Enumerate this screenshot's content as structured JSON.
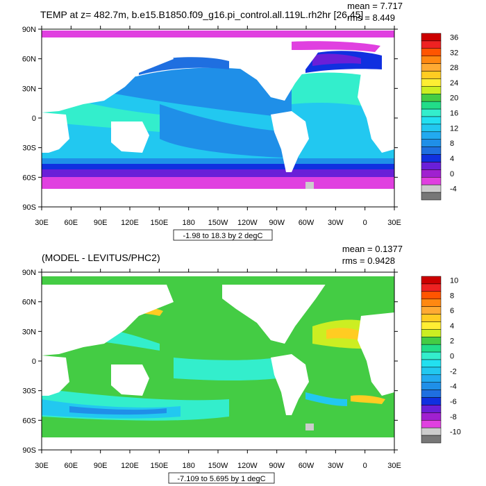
{
  "chart_data": [
    {
      "type": "heatmap",
      "title": "TEMP at z= 482.7m, b.e15.B1850.f09_g16.pi_control.all.119L.rh2hr [26,45]",
      "stat_mean": "mean = 7.717",
      "stat_rms": "rms = 8.449",
      "range_note": "-1.98 to 18.3 by 2 degC",
      "y_ticks": [
        "90N",
        "60N",
        "30N",
        "0",
        "30S",
        "60S",
        "90S"
      ],
      "x_ticks": [
        "30E",
        "60E",
        "90E",
        "120E",
        "150E",
        "180",
        "150W",
        "120W",
        "90W",
        "60W",
        "30W",
        "0",
        "30E"
      ],
      "colorbar_labels": [
        "36",
        "32",
        "28",
        "24",
        "20",
        "16",
        "12",
        "8",
        "4",
        "0",
        "-4"
      ],
      "colorbar_colors": [
        "#cc0000",
        "#ee2222",
        "#ff5500",
        "#ff8811",
        "#ffaa33",
        "#ffcc22",
        "#ffee33",
        "#ccee22",
        "#44cc44",
        "#22dd88",
        "#33eecc",
        "#22e0f0",
        "#22c8f0",
        "#22aaf0",
        "#1f8fe8",
        "#1f6fe0",
        "#1030e0",
        "#6a1fd8",
        "#a020d0",
        "#e040e0",
        "#cccccc",
        "#777777"
      ]
    },
    {
      "type": "heatmap",
      "title": "(MODEL - LEVITUS/PHC2)",
      "stat_mean": "mean = 0.1377",
      "stat_rms": "rms = 0.9428",
      "range_note": "-7.109 to 5.695 by 1 degC",
      "y_ticks": [
        "90N",
        "60N",
        "30N",
        "0",
        "30S",
        "60S",
        "90S"
      ],
      "x_ticks": [
        "30E",
        "60E",
        "90E",
        "120E",
        "150E",
        "180",
        "150W",
        "120W",
        "90W",
        "60W",
        "30W",
        "0",
        "30E"
      ],
      "colorbar_labels": [
        "10",
        "8",
        "6",
        "4",
        "2",
        "0",
        "-2",
        "-4",
        "-6",
        "-8",
        "-10"
      ],
      "colorbar_colors": [
        "#cc0000",
        "#ee2222",
        "#ff5500",
        "#ff8811",
        "#ffaa33",
        "#ffcc22",
        "#ffee33",
        "#ccee22",
        "#44cc44",
        "#22dd88",
        "#33eecc",
        "#22e0f0",
        "#22c8f0",
        "#22aaf0",
        "#1f8fe8",
        "#1f6fe0",
        "#1030e0",
        "#6a1fd8",
        "#a020d0",
        "#e040e0",
        "#cccccc",
        "#777777"
      ]
    }
  ]
}
